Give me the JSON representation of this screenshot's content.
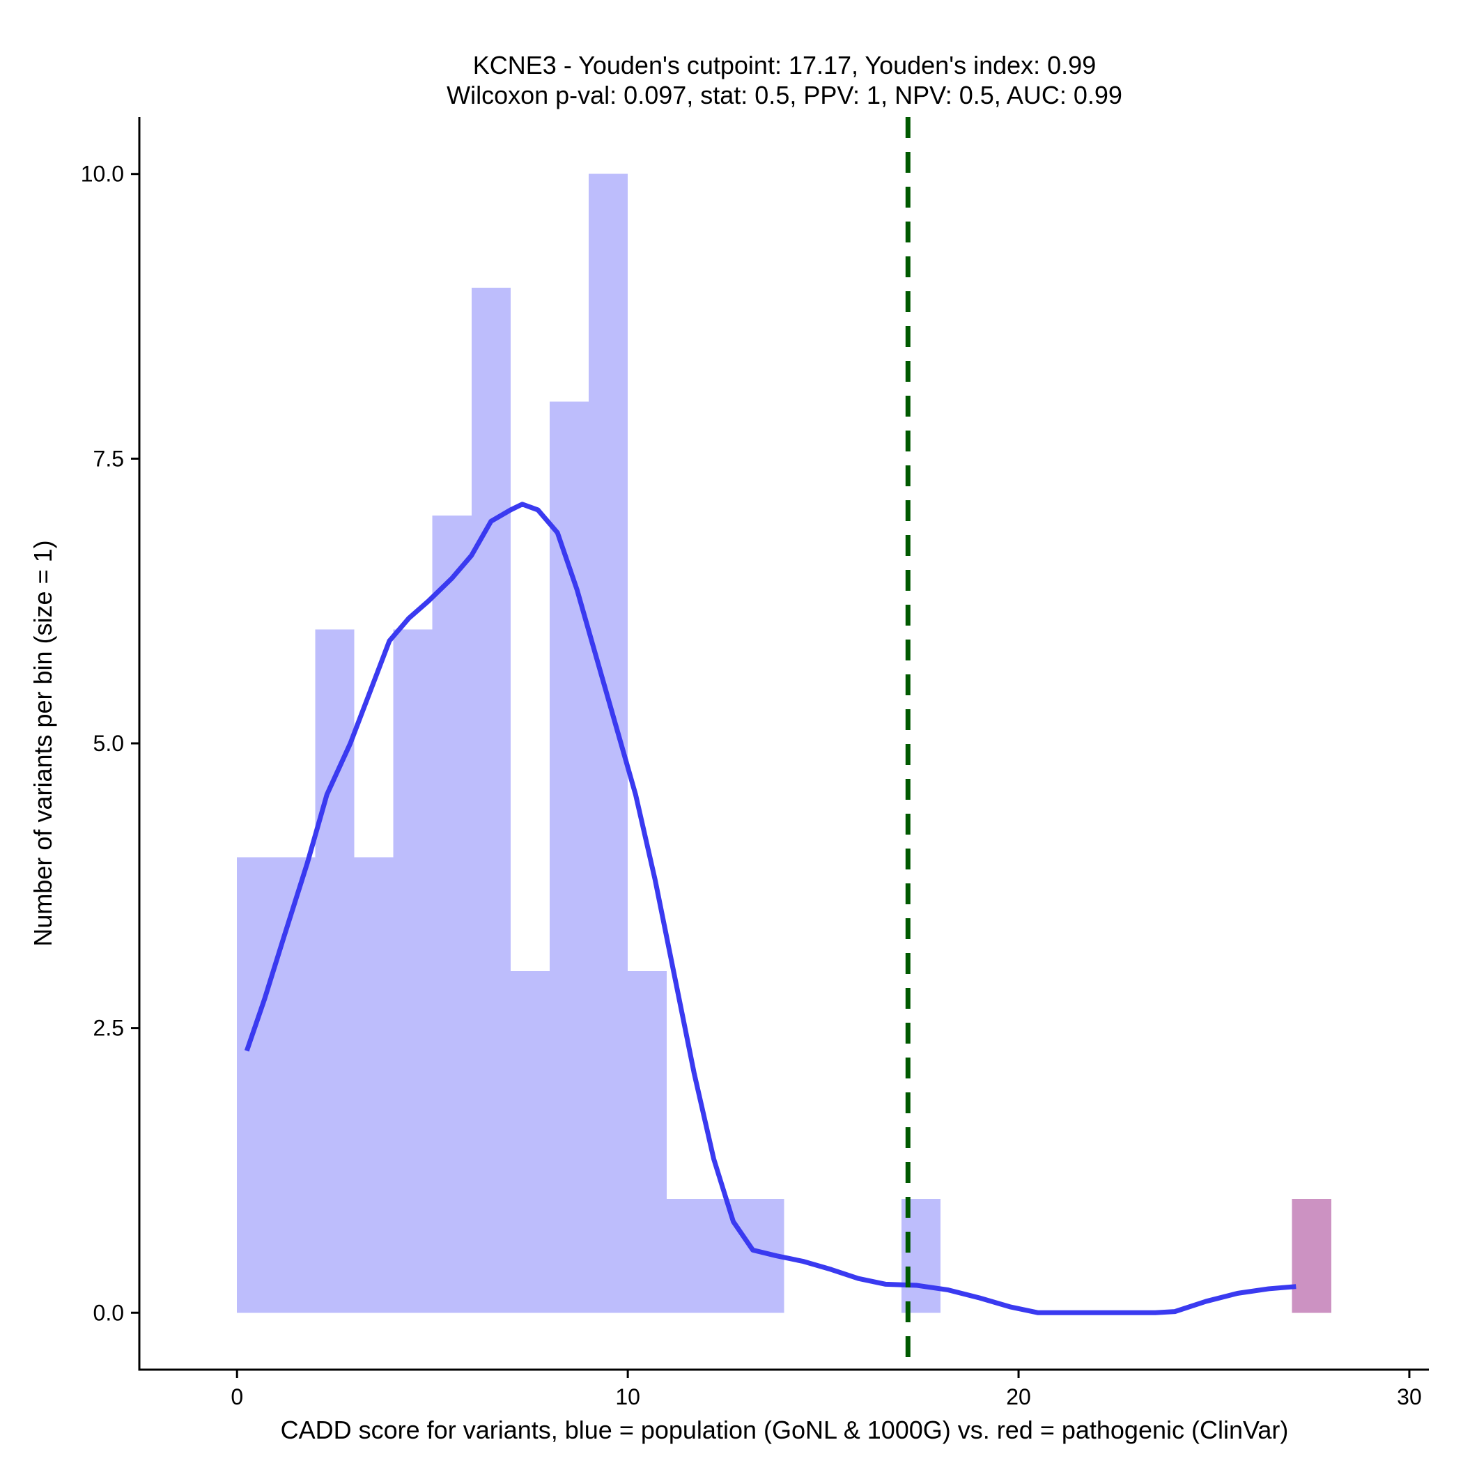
{
  "chart_data": {
    "type": "histogram",
    "title_line1": "KCNE3 - Youden's cutpoint: 17.17, Youden's index: 0.99",
    "title_line2": "Wilcoxon p-val: 0.097, stat: 0.5, PPV: 1, NPV: 0.5, AUC: 0.99",
    "xlabel": "CADD score for variants, blue = population (GoNL & 1000G) vs. red = pathogenic (ClinVar)",
    "ylabel": "Number of variants per bin (size = 1)",
    "xlim": [
      -2.5,
      30.5
    ],
    "ylim": [
      -0.5,
      10.5
    ],
    "x_ticks": [
      0,
      10,
      20,
      30
    ],
    "x_tick_labels": [
      "0",
      "10",
      "20",
      "30"
    ],
    "y_ticks": [
      0,
      2.5,
      5,
      7.5,
      10
    ],
    "y_tick_labels": [
      "0.0",
      "2.5",
      "5.0",
      "7.5",
      "10.0"
    ],
    "bin_width": 1,
    "cutpoint": 17.17,
    "series": [
      {
        "group": "population",
        "color": "#bdbdfc",
        "bins": [
          {
            "x0": 0,
            "count": 4
          },
          {
            "x0": 1,
            "count": 4
          },
          {
            "x0": 2,
            "count": 6
          },
          {
            "x0": 3,
            "count": 4
          },
          {
            "x0": 4,
            "count": 6
          },
          {
            "x0": 5,
            "count": 7
          },
          {
            "x0": 6,
            "count": 9
          },
          {
            "x0": 7,
            "count": 3
          },
          {
            "x0": 8,
            "count": 8
          },
          {
            "x0": 9,
            "count": 10
          },
          {
            "x0": 10,
            "count": 3
          },
          {
            "x0": 11,
            "count": 1
          },
          {
            "x0": 12,
            "count": 1
          },
          {
            "x0": 13,
            "count": 1
          },
          {
            "x0": 17,
            "count": 1
          }
        ]
      },
      {
        "group": "pathogenic",
        "color": "#cc92c2",
        "bins": [
          {
            "x0": 27,
            "count": 1
          }
        ]
      }
    ],
    "density_curve": {
      "color": "#3a3af0",
      "points": [
        [
          0.25,
          2.3
        ],
        [
          0.7,
          2.75
        ],
        [
          1.2,
          3.3
        ],
        [
          1.8,
          3.95
        ],
        [
          2.3,
          4.55
        ],
        [
          2.9,
          5.0
        ],
        [
          3.4,
          5.45
        ],
        [
          3.9,
          5.9
        ],
        [
          4.4,
          6.1
        ],
        [
          4.9,
          6.25
        ],
        [
          5.5,
          6.45
        ],
        [
          6.0,
          6.65
        ],
        [
          6.5,
          6.95
        ],
        [
          7.0,
          7.05
        ],
        [
          7.3,
          7.1
        ],
        [
          7.7,
          7.05
        ],
        [
          8.2,
          6.85
        ],
        [
          8.7,
          6.35
        ],
        [
          9.2,
          5.75
        ],
        [
          9.7,
          5.15
        ],
        [
          10.2,
          4.55
        ],
        [
          10.7,
          3.8
        ],
        [
          11.2,
          2.95
        ],
        [
          11.7,
          2.1
        ],
        [
          12.2,
          1.35
        ],
        [
          12.7,
          0.8
        ],
        [
          13.2,
          0.55
        ],
        [
          13.8,
          0.5
        ],
        [
          14.5,
          0.45
        ],
        [
          15.2,
          0.38
        ],
        [
          15.9,
          0.3
        ],
        [
          16.6,
          0.25
        ],
        [
          17.4,
          0.24
        ],
        [
          18.2,
          0.2
        ],
        [
          19.0,
          0.13
        ],
        [
          19.8,
          0.05
        ],
        [
          20.5,
          0.0
        ],
        [
          22.0,
          0.0
        ],
        [
          23.5,
          0.0
        ],
        [
          24.0,
          0.01
        ],
        [
          24.8,
          0.1
        ],
        [
          25.6,
          0.17
        ],
        [
          26.4,
          0.21
        ],
        [
          27.1,
          0.23
        ]
      ]
    }
  }
}
